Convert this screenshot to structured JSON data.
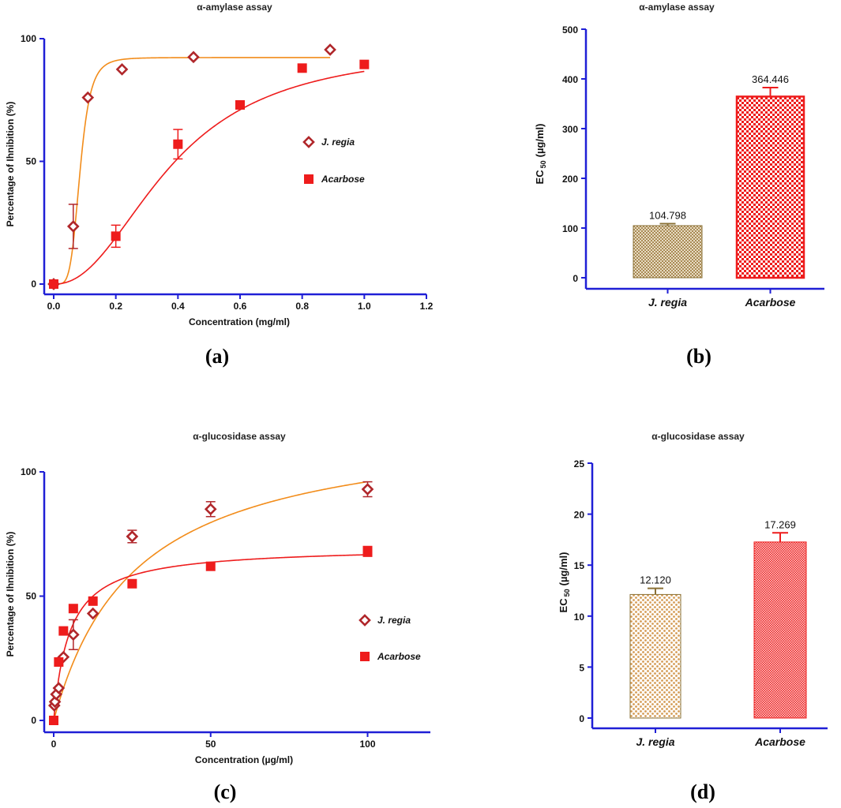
{
  "colors": {
    "axis": "#1f1fd6",
    "j_regia_curve": "#f28c1a",
    "j_regia_marker": "#b0262a",
    "acarbose": "#ee1c1c",
    "bar_jregia_b": "#a98a55",
    "bar_jregia_d": "#d49b55"
  },
  "chart_data": [
    {
      "id": "a",
      "panel_label": "(a)",
      "type": "scatter",
      "title": "α-amylase assay",
      "xlabel": "Concentration (mg/ml)",
      "ylabel": "Percentage of Ihnibition (%)",
      "xlim": [
        0,
        1.2
      ],
      "ylim": [
        0,
        100
      ],
      "xticks": [
        0,
        0.2,
        0.4,
        0.6,
        0.8,
        1.0,
        1.2
      ],
      "xtick_labels": [
        "0.0",
        "0.2",
        "0.4",
        "0.6",
        "0.8",
        "1.0",
        "1.2"
      ],
      "yticks": [
        0,
        50,
        100
      ],
      "ytick_labels": [
        "0",
        "50",
        "100"
      ],
      "legend": [
        "J. regia",
        "Acarbose"
      ],
      "series": [
        {
          "name": "J. regia",
          "marker": "diamond-open",
          "x": [
            0,
            0.063,
            0.11,
            0.22,
            0.45,
            0.89
          ],
          "y": [
            0,
            23.5,
            76,
            87.5,
            92.5,
            95.5
          ],
          "err": [
            0,
            9,
            0,
            0,
            0,
            0
          ],
          "fit": {
            "top": 92.3,
            "ec50": 0.085,
            "hill": 5
          }
        },
        {
          "name": "Acarbose",
          "marker": "square-filled",
          "x": [
            0,
            0.2,
            0.4,
            0.6,
            0.8,
            1.0
          ],
          "y": [
            0,
            19.5,
            57,
            73,
            88,
            89.5
          ],
          "err": [
            0,
            4.5,
            6,
            0,
            0,
            0
          ],
          "fit": {
            "top": 97,
            "ec50": 0.38,
            "hill": 2.2
          }
        }
      ]
    },
    {
      "id": "b",
      "panel_label": "(b)",
      "type": "bar",
      "title": "α-amylase assay",
      "ylabel": "EC 50 (µg/ml)",
      "ylabel_main": "EC",
      "ylabel_sub": "50",
      "ylabel_unit": "(µg/ml)",
      "ylim": [
        0,
        500
      ],
      "yticks": [
        0,
        100,
        200,
        300,
        400,
        500
      ],
      "ytick_labels": [
        "0",
        "100",
        "200",
        "300",
        "400",
        "500"
      ],
      "categories": [
        "J. regia",
        "Acarbose"
      ],
      "values": [
        104.798,
        364.446
      ],
      "value_labels": [
        "104.798",
        "364.446"
      ],
      "err": [
        4,
        18
      ]
    },
    {
      "id": "c",
      "panel_label": "(c)",
      "type": "scatter",
      "title": "α-glucosidase assay",
      "xlabel": "Concentration (µg/ml)",
      "ylabel": "Percentage of Ihnibition (%)",
      "xlim": [
        0,
        120
      ],
      "ylim": [
        0,
        100
      ],
      "xticks": [
        0,
        50,
        100
      ],
      "xtick_labels": [
        "0",
        "50",
        "100"
      ],
      "yticks": [
        0,
        50,
        100
      ],
      "ytick_labels": [
        "0",
        "50",
        "100"
      ],
      "legend": [
        "J. regia",
        "Acarbose"
      ],
      "series": [
        {
          "name": "J. regia",
          "marker": "diamond-open",
          "x": [
            0.2,
            0.4,
            0.8,
            1.6,
            3.1,
            6.25,
            12.5,
            25,
            50,
            100
          ],
          "y": [
            6,
            7.5,
            10.5,
            13,
            25.5,
            34.5,
            43,
            74,
            85,
            93
          ],
          "err": [
            0,
            0,
            0,
            0,
            0,
            6,
            0,
            2.5,
            3,
            3
          ],
          "fit": {
            "top": 121,
            "ec50": 26,
            "hill": 1
          }
        },
        {
          "name": "Acarbose",
          "marker": "square-filled",
          "x": [
            0,
            1.6,
            3.1,
            6.25,
            12.5,
            25,
            50,
            100
          ],
          "y": [
            0,
            23.5,
            36,
            45,
            48,
            55,
            62,
            68
          ],
          "err": [
            0,
            0,
            0,
            0,
            0,
            0,
            0,
            2
          ],
          "fit": {
            "top": 70,
            "ec50": 5,
            "hill": 1
          }
        }
      ]
    },
    {
      "id": "d",
      "panel_label": "(d)",
      "type": "bar",
      "title": "α-glucosidase assay",
      "ylabel": "EC 50 (µg/ml)",
      "ylabel_main": "EC",
      "ylabel_sub": "50",
      "ylabel_unit": "(µg/ml)",
      "ylim": [
        0,
        25
      ],
      "yticks": [
        0,
        5,
        10,
        15,
        20,
        25
      ],
      "ytick_labels": [
        "0",
        "5",
        "10",
        "15",
        "20",
        "25"
      ],
      "categories": [
        "J. regia",
        "Acarbose"
      ],
      "values": [
        12.12,
        17.269
      ],
      "value_labels": [
        "12.120",
        "17.269"
      ],
      "err": [
        0.6,
        0.9
      ]
    }
  ]
}
